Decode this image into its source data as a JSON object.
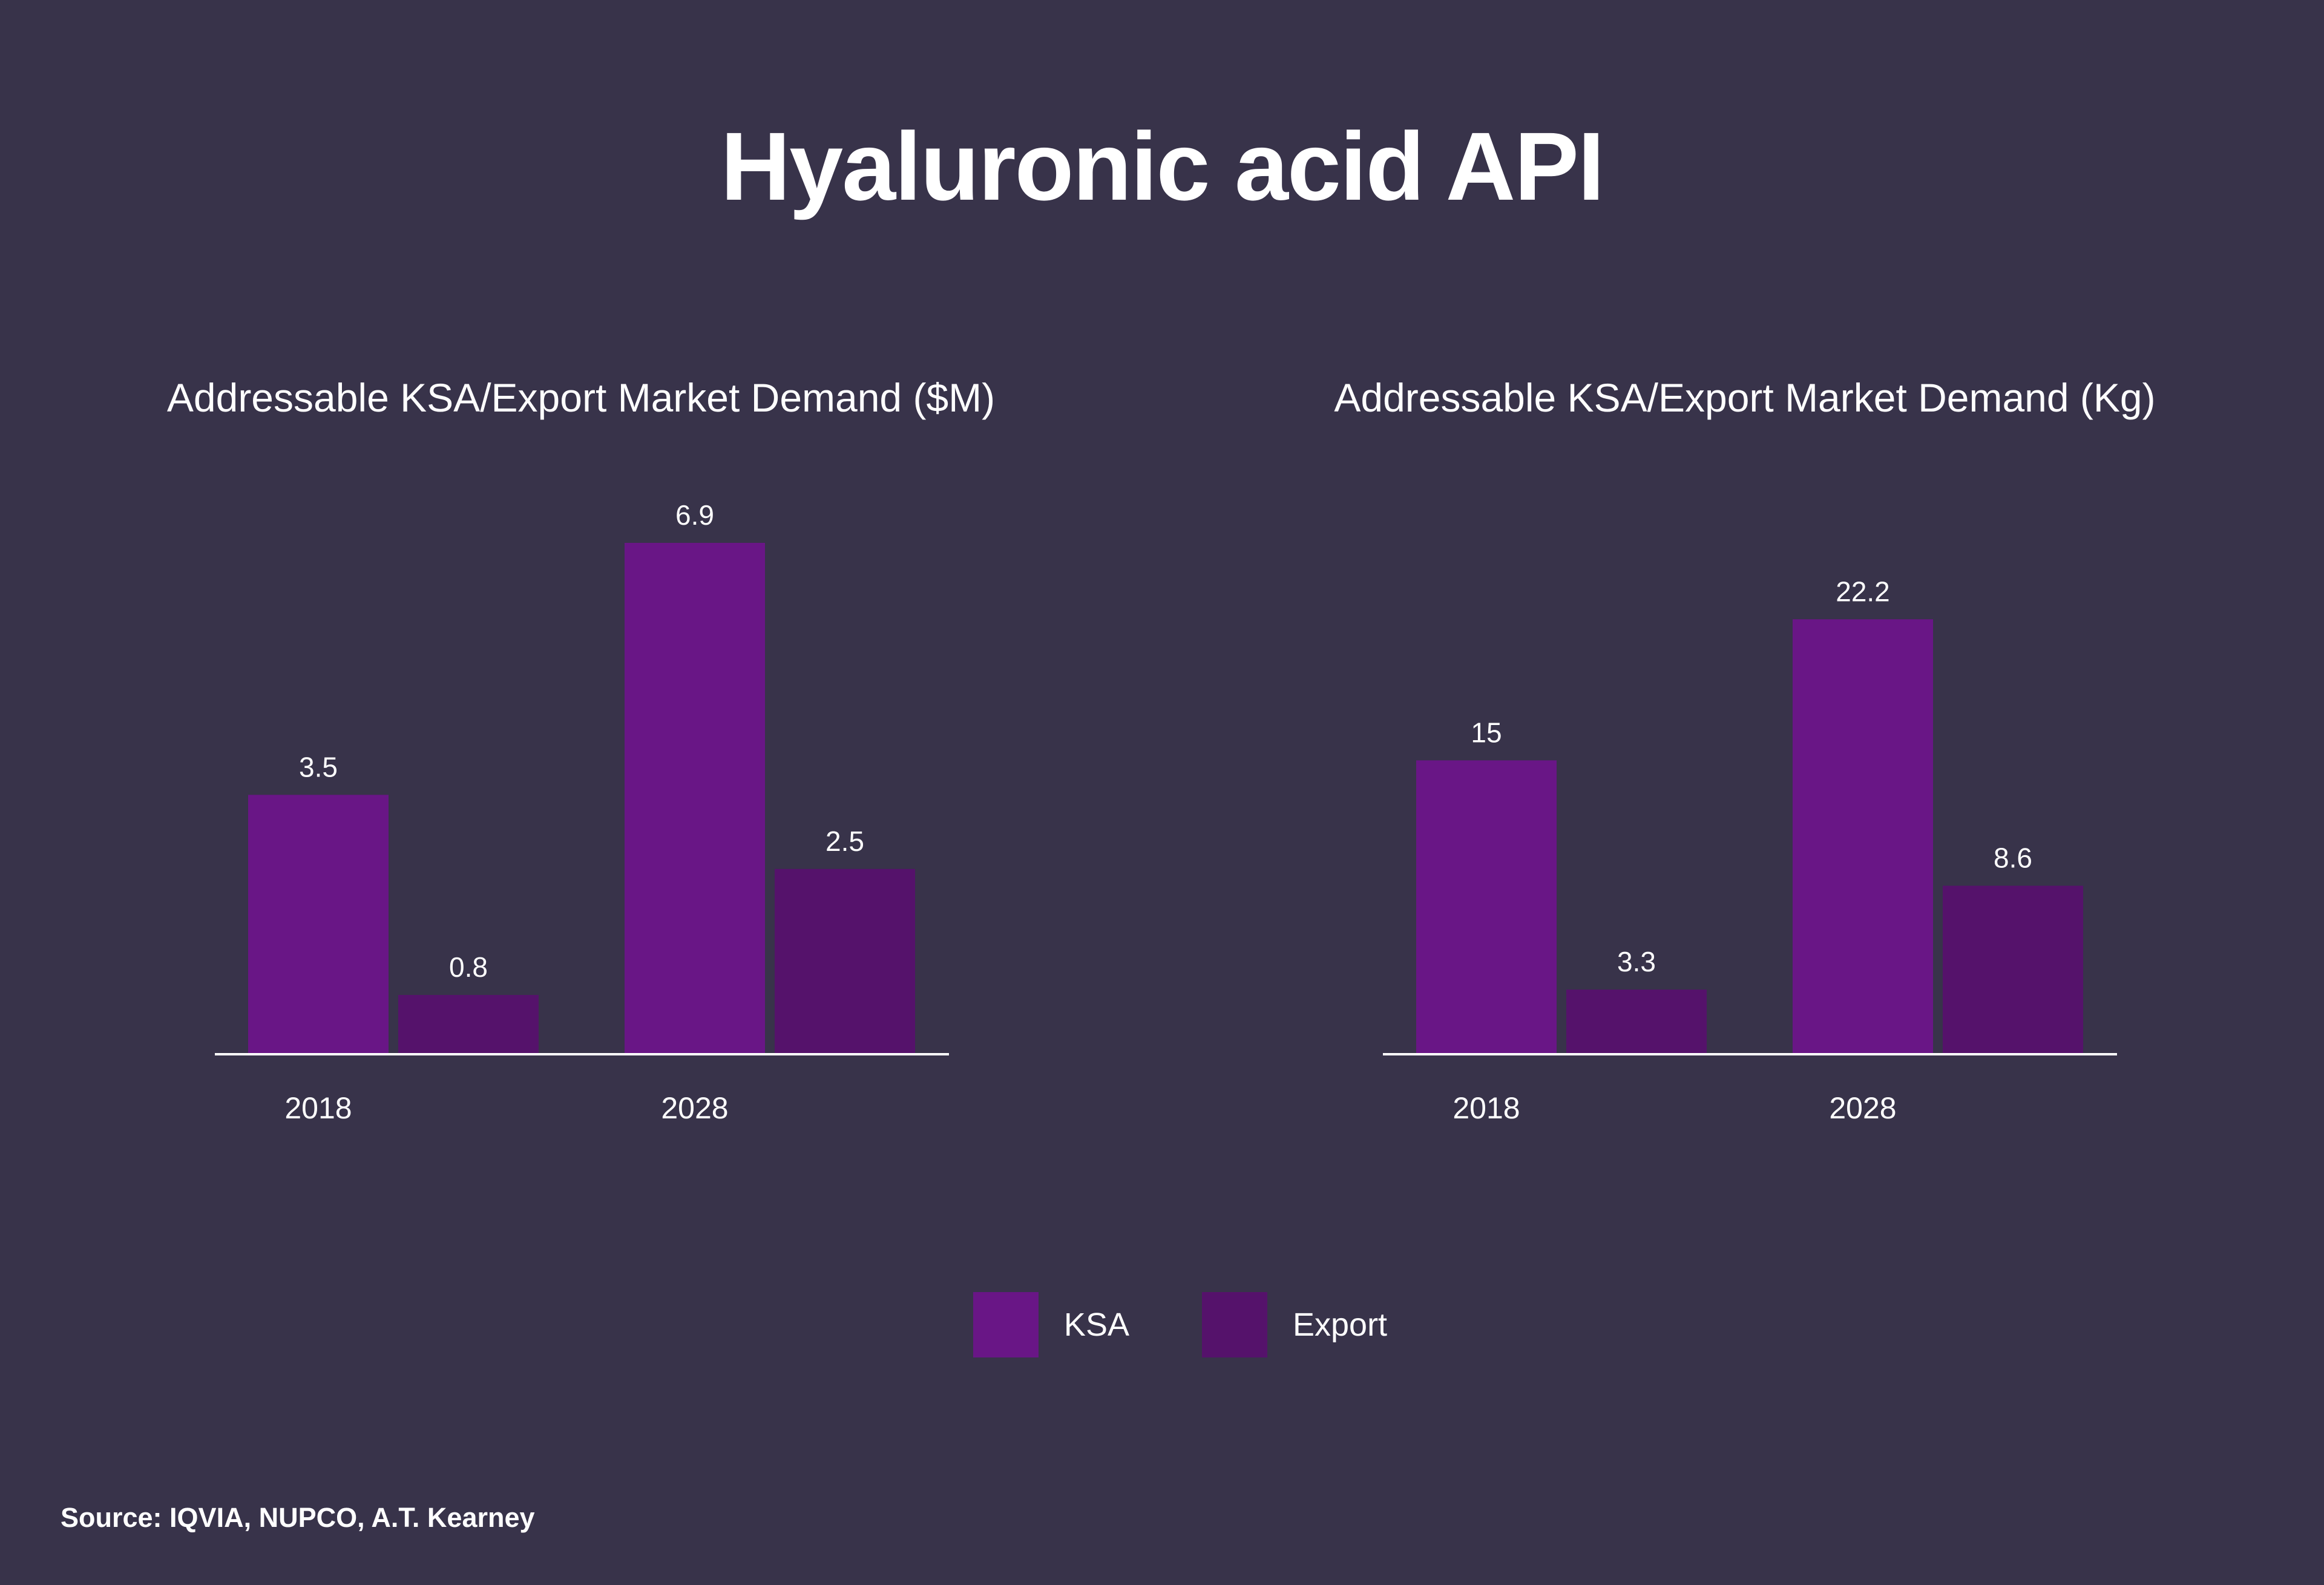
{
  "title": "Hyaluronic acid API",
  "colors": {
    "background": "#38334a",
    "ksa": "#691686",
    "export": "#55126b",
    "axis": "#ffffff",
    "text": "#ffffff"
  },
  "legend": [
    {
      "label": "KSA",
      "color": "#691686"
    },
    {
      "label": "Export",
      "color": "#55126b"
    }
  ],
  "chart_data": [
    {
      "type": "bar",
      "title": "Addressable KSA/Export Market Demand ($M)",
      "xlabel": "",
      "ylabel": "",
      "categories": [
        "2018",
        "2028"
      ],
      "series": [
        {
          "name": "KSA",
          "values": [
            3.5,
            6.9
          ]
        },
        {
          "name": "Export",
          "values": [
            0.8,
            2.5
          ]
        }
      ],
      "value_labels": [
        [
          "3.5",
          "6.9"
        ],
        [
          "0.8",
          "2.5"
        ]
      ],
      "ylim": [
        0,
        6.9
      ],
      "grid": false,
      "legend_position": "bottom-center"
    },
    {
      "type": "bar",
      "title": "Addressable KSA/Export Market Demand (Kg)",
      "xlabel": "",
      "ylabel": "",
      "categories": [
        "2018",
        "2028"
      ],
      "series": [
        {
          "name": "KSA",
          "values": [
            15,
            22.2
          ]
        },
        {
          "name": "Export",
          "values": [
            3.3,
            8.6
          ]
        }
      ],
      "value_labels": [
        [
          "15",
          "22.2"
        ],
        [
          "3.3",
          "8.6"
        ]
      ],
      "ylim": [
        0,
        26.1
      ],
      "grid": false,
      "legend_position": "bottom-center"
    }
  ],
  "source": "Source: IQVIA, NUPCO, A.T. Kearney"
}
